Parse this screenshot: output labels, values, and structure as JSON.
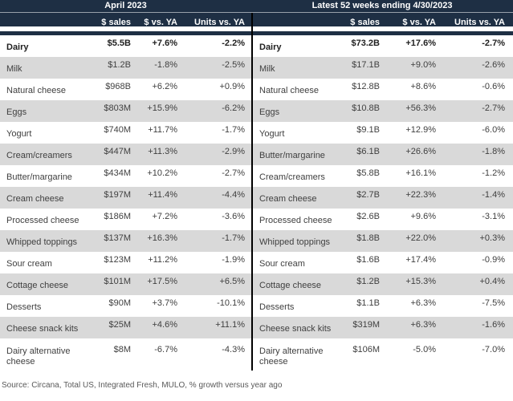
{
  "colors": {
    "header_bg": "#1e2f44",
    "stripe": "#d9d9d9",
    "divider": "#000000",
    "header_text": "#ffffff",
    "body_text": "#3f3f3f",
    "footer_text": "#595959"
  },
  "chart_data": [
    {
      "type": "table",
      "title": "April 2023",
      "columns": [
        "$ sales",
        "$ vs. YA",
        "Units vs. YA"
      ],
      "rows": [
        [
          "Dairy",
          "$5.5B",
          "+7.6%",
          "-2.2%"
        ],
        [
          "Milk",
          "$1.2B",
          "-1.8%",
          "-2.5%"
        ],
        [
          "Natural cheese",
          "$968B",
          "+6.2%",
          "+0.9%"
        ],
        [
          "Eggs",
          "$803M",
          "+15.9%",
          "-6.2%"
        ],
        [
          "Yogurt",
          "$740M",
          "+11.7%",
          "-1.7%"
        ],
        [
          "Cream/creamers",
          "$447M",
          "+11.3%",
          "-2.9%"
        ],
        [
          "Butter/margarine",
          "$434M",
          "+10.2%",
          "-2.7%"
        ],
        [
          "Cream cheese",
          "$197M",
          "+11.4%",
          "-4.4%"
        ],
        [
          "Processed cheese",
          "$186M",
          "+7.2%",
          "-3.6%"
        ],
        [
          "Whipped toppings",
          "$137M",
          "+16.3%",
          "-1.7%"
        ],
        [
          "Sour cream",
          "$123M",
          "+11.2%",
          "-1.9%"
        ],
        [
          "Cottage cheese",
          "$101M",
          "+17.5%",
          "+6.5%"
        ],
        [
          "Desserts",
          "$90M",
          "+3.7%",
          "-10.1%"
        ],
        [
          "Cheese snack kits",
          "$25M",
          "+4.6%",
          "+11.1%"
        ],
        [
          "Dairy alternative cheese",
          "$8M",
          "-6.7%",
          "-4.3%"
        ]
      ]
    },
    {
      "type": "table",
      "title": "Latest 52 weeks ending 4/30/2023",
      "columns": [
        "$ sales",
        "$ vs. YA",
        "Units vs. YA"
      ],
      "rows": [
        [
          "Dairy",
          "$73.2B",
          "+17.6%",
          "-2.7%"
        ],
        [
          "Milk",
          "$17.1B",
          "+9.0%",
          "-2.6%"
        ],
        [
          "Natural cheese",
          "$12.8B",
          "+8.6%",
          "-0.6%"
        ],
        [
          "Eggs",
          "$10.8B",
          "+56.3%",
          "-2.7%"
        ],
        [
          "Yogurt",
          "$9.1B",
          "+12.9%",
          "-6.0%"
        ],
        [
          "Butter/margarine",
          "$6.1B",
          "+26.6%",
          "-1.8%"
        ],
        [
          "Cream/creamers",
          "$5.8B",
          "+16.1%",
          "-1.2%"
        ],
        [
          "Cream cheese",
          "$2.7B",
          "+22.3%",
          "-1.4%"
        ],
        [
          "Processed cheese",
          "$2.6B",
          "+9.6%",
          "-3.1%"
        ],
        [
          "Whipped toppings",
          "$1.8B",
          "+22.0%",
          "+0.3%"
        ],
        [
          "Sour cream",
          "$1.6B",
          "+17.4%",
          "-0.9%"
        ],
        [
          "Cottage cheese",
          "$1.2B",
          "+15.3%",
          "+0.4%"
        ],
        [
          "Desserts",
          "$1.1B",
          "+6.3%",
          "-7.5%"
        ],
        [
          "Cheese snack kits",
          "$319M",
          "+6.3%",
          "-1.6%"
        ],
        [
          "Dairy alternative cheese",
          "$106M",
          "-5.0%",
          "-7.0%"
        ]
      ]
    }
  ],
  "footer": {
    "source": "Source: Circana, Total US, Integrated Fresh, MULO, % growth versus year ago"
  }
}
